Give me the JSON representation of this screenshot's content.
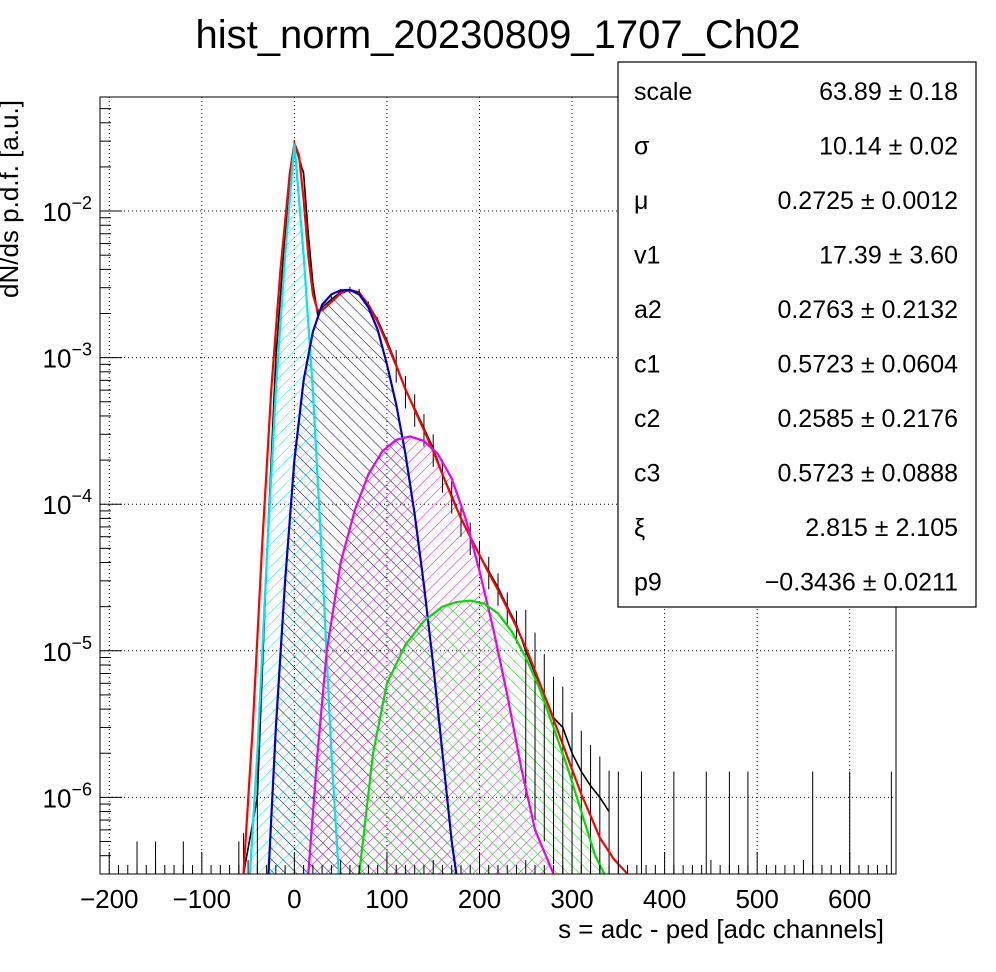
{
  "chart_data": {
    "type": "histogram",
    "title": "hist_norm_20230809_1707_Ch02",
    "xlabel": "s = adc - ped [adc channels]",
    "ylabel": "dN/ds p.d.f. [a.u.]",
    "xlim": [
      -210,
      650
    ],
    "ylim": [
      3e-07,
      0.06
    ],
    "yscale": "log",
    "grid": true,
    "x_ticks": [
      {
        "value": -200,
        "label": "−200"
      },
      {
        "value": -100,
        "label": "−100"
      },
      {
        "value": 0,
        "label": "0"
      },
      {
        "value": 100,
        "label": "100"
      },
      {
        "value": 200,
        "label": "200"
      },
      {
        "value": 300,
        "label": "300"
      },
      {
        "value": 400,
        "label": "400"
      },
      {
        "value": 500,
        "label": "500"
      },
      {
        "value": 600,
        "label": "600"
      }
    ],
    "y_ticks": [
      {
        "value": 1e-06,
        "base": "10",
        "exp": "−6"
      },
      {
        "value": 1e-05,
        "base": "10",
        "exp": "−5"
      },
      {
        "value": 0.0001,
        "base": "10",
        "exp": "−4"
      },
      {
        "value": 0.001,
        "base": "10",
        "exp": "−3"
      },
      {
        "value": 0.01,
        "base": "10",
        "exp": "−2"
      }
    ],
    "stats": [
      {
        "name": "scale",
        "value": "63.89 ± 0.18"
      },
      {
        "name": "σ",
        "value": "10.14 ± 0.02"
      },
      {
        "name": "μ",
        "value": "0.2725 ± 0.0012"
      },
      {
        "name": "v1",
        "value": "17.39 ± 3.60"
      },
      {
        "name": "a2",
        "value": "0.2763 ± 0.2132"
      },
      {
        "name": "c1",
        "value": "0.5723 ± 0.0604"
      },
      {
        "name": "c2",
        "value": "0.2585 ± 0.2176"
      },
      {
        "name": "c3",
        "value": "0.5723 ± 0.0888"
      },
      {
        "name": "ξ",
        "value": "2.815 ± 2.105"
      },
      {
        "name": "p9",
        "value": "−0.3436 ± 0.0211"
      }
    ],
    "histogram": {
      "color": "#000000",
      "points": [
        [
          -55,
          3e-07
        ],
        [
          -40,
          1e-06
        ],
        [
          -30,
          4e-05
        ],
        [
          -20,
          0.001
        ],
        [
          -10,
          0.007
        ],
        [
          0,
          0.029
        ],
        [
          10,
          0.018
        ],
        [
          15,
          0.007
        ],
        [
          20,
          0.0032
        ],
        [
          25,
          0.002
        ],
        [
          30,
          0.0022
        ],
        [
          40,
          0.0025
        ],
        [
          50,
          0.0028
        ],
        [
          60,
          0.0029
        ],
        [
          70,
          0.0028
        ],
        [
          80,
          0.0023
        ],
        [
          90,
          0.0018
        ],
        [
          100,
          0.0013
        ],
        [
          110,
          0.0009
        ],
        [
          120,
          0.0006
        ],
        [
          130,
          0.00045
        ],
        [
          140,
          0.00033
        ],
        [
          150,
          0.00024
        ],
        [
          160,
          0.00016
        ],
        [
          170,
          0.000115
        ],
        [
          180,
          8e-05
        ],
        [
          190,
          6e-05
        ],
        [
          200,
          4.5e-05
        ],
        [
          210,
          3.5e-05
        ],
        [
          220,
          2.7e-05
        ],
        [
          230,
          2e-05
        ],
        [
          240,
          1.5e-05
        ],
        [
          250,
          1e-05
        ],
        [
          260,
          7e-06
        ],
        [
          270,
          5e-06
        ],
        [
          280,
          3.5e-06
        ],
        [
          290,
          3e-06
        ],
        [
          300,
          2e-06
        ],
        [
          310,
          1.5e-06
        ],
        [
          320,
          1.2e-06
        ],
        [
          330,
          1e-06
        ],
        [
          340,
          8e-07
        ]
      ],
      "sparse_x": [
        -170,
        -150,
        -120,
        -60,
        350,
        375,
        410,
        445,
        470,
        490,
        560,
        600,
        645
      ]
    },
    "series": [
      {
        "name": "",
        "color": "#ff0000",
        "points": [
          [
            -55,
            3e-07
          ],
          [
            -45,
            3e-06
          ],
          [
            -35,
            5e-05
          ],
          [
            -25,
            0.0006
          ],
          [
            -15,
            0.004
          ],
          [
            -5,
            0.018
          ],
          [
            0,
            0.029
          ],
          [
            5,
            0.024
          ],
          [
            10,
            0.012
          ],
          [
            15,
            0.005
          ],
          [
            20,
            0.0027
          ],
          [
            25,
            0.0021
          ],
          [
            30,
            0.0021
          ],
          [
            40,
            0.0024
          ],
          [
            50,
            0.00275
          ],
          [
            60,
            0.0029
          ],
          [
            70,
            0.00275
          ],
          [
            80,
            0.0023
          ],
          [
            90,
            0.00175
          ],
          [
            100,
            0.00125
          ],
          [
            110,
            0.00088
          ],
          [
            120,
            0.00061
          ],
          [
            130,
            0.00044
          ],
          [
            140,
            0.00032
          ],
          [
            150,
            0.00023
          ],
          [
            160,
            0.00016
          ],
          [
            170,
            0.000112
          ],
          [
            180,
            8e-05
          ],
          [
            190,
            6e-05
          ],
          [
            200,
            4.5e-05
          ],
          [
            210,
            3.4e-05
          ],
          [
            220,
            2.6e-05
          ],
          [
            230,
            1.95e-05
          ],
          [
            240,
            1.45e-05
          ],
          [
            250,
            1.05e-05
          ],
          [
            260,
            7.3e-06
          ],
          [
            270,
            5e-06
          ],
          [
            280,
            3.4e-06
          ],
          [
            290,
            2.3e-06
          ],
          [
            300,
            1.55e-06
          ],
          [
            310,
            1.05e-06
          ],
          [
            320,
            7.5e-07
          ],
          [
            330,
            5.3e-07
          ],
          [
            345,
            3.8e-07
          ],
          [
            360,
            3e-07
          ]
        ]
      },
      {
        "name": "",
        "color": "#00e5ee",
        "hatch": "cyan",
        "points": [
          [
            -48,
            3e-07
          ],
          [
            -40,
            2e-06
          ],
          [
            -30,
            4e-05
          ],
          [
            -20,
            0.0006
          ],
          [
            -10,
            0.005
          ],
          [
            0,
            0.029
          ],
          [
            10,
            0.005
          ],
          [
            20,
            0.0006
          ],
          [
            30,
            4e-05
          ],
          [
            40,
            2e-06
          ],
          [
            48,
            3e-07
          ]
        ]
      },
      {
        "name": "",
        "color": "#0000cc",
        "hatch": "navy",
        "points": [
          [
            -28,
            3e-07
          ],
          [
            -20,
            3e-06
          ],
          [
            -10,
            3e-05
          ],
          [
            0,
            0.0002
          ],
          [
            10,
            0.0007
          ],
          [
            20,
            0.0015
          ],
          [
            30,
            0.0023
          ],
          [
            40,
            0.0027
          ],
          [
            50,
            0.00288
          ],
          [
            60,
            0.0029
          ],
          [
            70,
            0.0027
          ],
          [
            80,
            0.0022
          ],
          [
            90,
            0.00155
          ],
          [
            100,
            0.0009
          ],
          [
            110,
            0.00048
          ],
          [
            120,
            0.00022
          ],
          [
            130,
            8.5e-05
          ],
          [
            140,
            2.8e-05
          ],
          [
            150,
            8e-06
          ],
          [
            160,
            2e-06
          ],
          [
            170,
            5e-07
          ],
          [
            175,
            3e-07
          ]
        ]
      },
      {
        "name": "",
        "color": "#ee00ee",
        "hatch": "magenta",
        "points": [
          [
            15,
            3e-07
          ],
          [
            25,
            2e-06
          ],
          [
            35,
            1e-05
          ],
          [
            50,
            4e-05
          ],
          [
            65,
            9e-05
          ],
          [
            80,
            0.00016
          ],
          [
            95,
            0.00023
          ],
          [
            110,
            0.000275
          ],
          [
            125,
            0.00029
          ],
          [
            140,
            0.00027
          ],
          [
            155,
            0.00022
          ],
          [
            170,
            0.00015
          ],
          [
            185,
            8e-05
          ],
          [
            200,
            3.5e-05
          ],
          [
            215,
            1.4e-05
          ],
          [
            230,
            5e-06
          ],
          [
            245,
            1.6e-06
          ],
          [
            260,
            6e-07
          ],
          [
            280,
            3e-07
          ]
        ]
      },
      {
        "name": "",
        "color": "#00dd00",
        "hatch": "green",
        "points": [
          [
            70,
            3e-07
          ],
          [
            85,
            2e-06
          ],
          [
            100,
            6e-06
          ],
          [
            120,
            1.1e-05
          ],
          [
            140,
            1.6e-05
          ],
          [
            160,
            2e-05
          ],
          [
            175,
            2.15e-05
          ],
          [
            190,
            2.2e-05
          ],
          [
            205,
            2.1e-05
          ],
          [
            220,
            1.8e-05
          ],
          [
            235,
            1.35e-05
          ],
          [
            250,
            9e-06
          ],
          [
            265,
            5.5e-06
          ],
          [
            280,
            3e-06
          ],
          [
            295,
            1.6e-06
          ],
          [
            310,
            8e-07
          ],
          [
            325,
            4e-07
          ],
          [
            335,
            3e-07
          ]
        ]
      }
    ]
  }
}
